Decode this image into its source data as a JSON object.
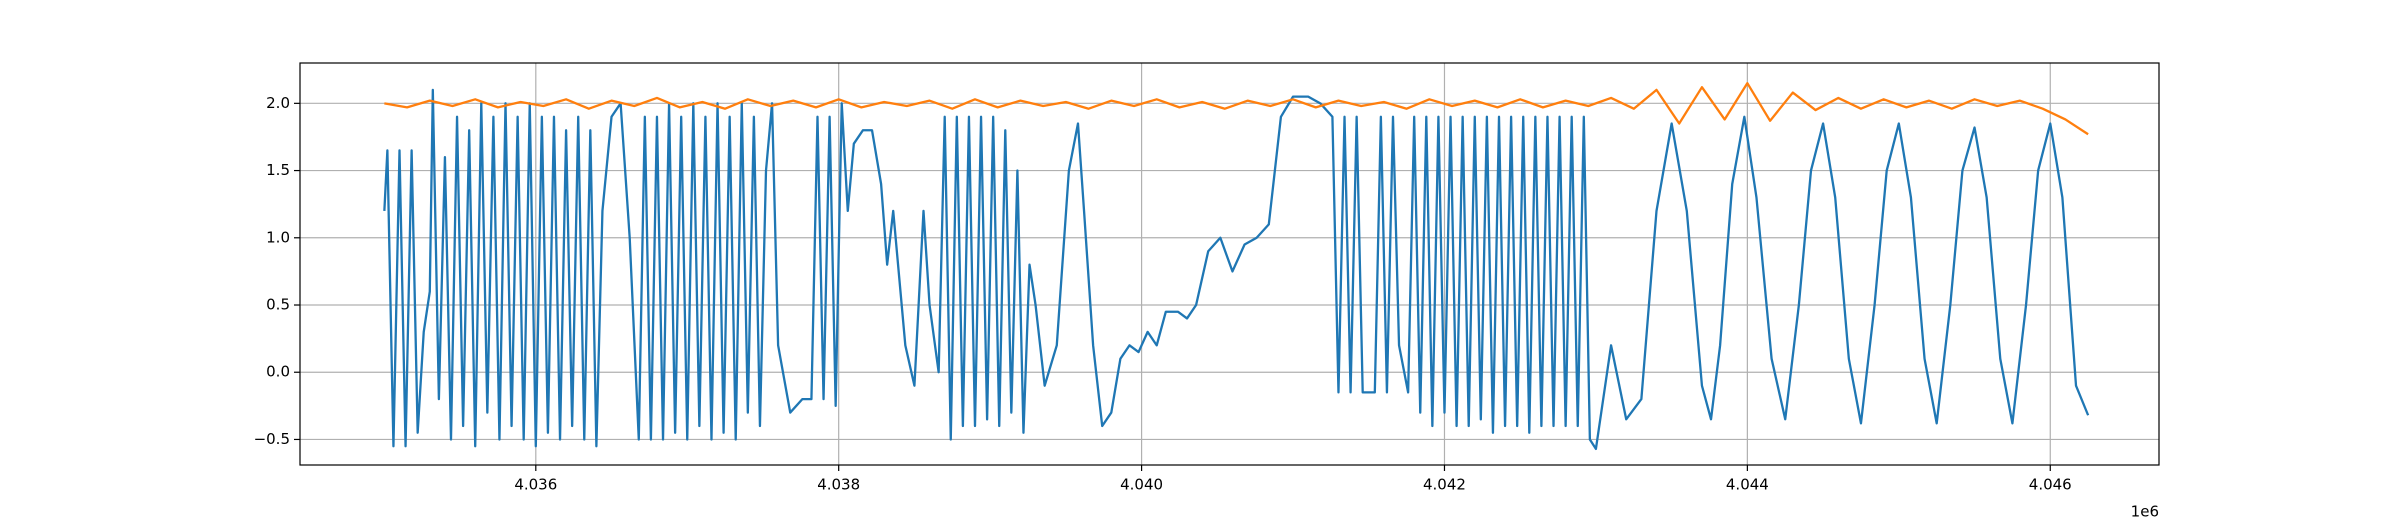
{
  "chart_data": {
    "type": "line",
    "xlim": [
      4034443,
      4046718
    ],
    "ylim": [
      -0.69,
      2.3
    ],
    "xticks": [
      {
        "value": 4036000,
        "label": "4.036"
      },
      {
        "value": 4038000,
        "label": "4.038"
      },
      {
        "value": 4040000,
        "label": "4.040"
      },
      {
        "value": 4042000,
        "label": "4.042"
      },
      {
        "value": 4044000,
        "label": "4.044"
      },
      {
        "value": 4046000,
        "label": "4.046"
      }
    ],
    "x_offset_label": "1e6",
    "yticks": [
      {
        "value": -0.5,
        "label": "−0.5"
      },
      {
        "value": 0,
        "label": "0.0"
      },
      0.5,
      {
        "value": 1,
        "label": "1.0"
      },
      1.5,
      {
        "value": 2,
        "label": "2.0"
      }
    ],
    "grid": true,
    "series": [
      {
        "color": "#1f77b4",
        "x": [
          4035000,
          4035020,
          4035060,
          4035100,
          4035140,
          4035180,
          4035220,
          4035260,
          4035300,
          4035320,
          4035360,
          4035400,
          4035440,
          4035480,
          4035520,
          4035560,
          4035600,
          4035640,
          4035680,
          4035720,
          4035760,
          4035800,
          4035840,
          4035880,
          4035920,
          4035960,
          4036000,
          4036040,
          4036080,
          4036120,
          4036160,
          4036200,
          4036240,
          4036280,
          4036320,
          4036360,
          4036400,
          4036440,
          4036500,
          4036560,
          4036620,
          4036680,
          4036720,
          4036760,
          4036800,
          4036840,
          4036880,
          4036920,
          4036960,
          4037000,
          4037040,
          4037080,
          4037120,
          4037160,
          4037200,
          4037240,
          4037280,
          4037320,
          4037360,
          4037400,
          4037440,
          4037480,
          4037520,
          4037560,
          4037600,
          4037680,
          4037760,
          4037820,
          4037860,
          4037900,
          4037940,
          4037980,
          4038020,
          4038060,
          4038100,
          4038160,
          4038220,
          4038280,
          4038320,
          4038360,
          4038400,
          4038440,
          4038500,
          4038560,
          4038600,
          4038660,
          4038700,
          4038740,
          4038780,
          4038820,
          4038860,
          4038900,
          4038940,
          4038980,
          4039020,
          4039060,
          4039100,
          4039140,
          4039180,
          4039220,
          4039260,
          4039300,
          4039360,
          4039440,
          4039520,
          4039580,
          4039620,
          4039680,
          4039740,
          4039800,
          4039860,
          4039920,
          4039980,
          4040040,
          4040100,
          4040160,
          4040240,
          4040300,
          4040360,
          4040440,
          4040520,
          4040600,
          4040680,
          4040760,
          4040840,
          4040920,
          4041000,
          4041100,
          4041180,
          4041260,
          4041300,
          4041340,
          4041380,
          4041420,
          4041460,
          4041540,
          4041580,
          4041620,
          4041660,
          4041700,
          4041760,
          4041800,
          4041840,
          4041880,
          4041920,
          4041960,
          4042000,
          4042040,
          4042080,
          4042120,
          4042160,
          4042200,
          4042240,
          4042280,
          4042320,
          4042360,
          4042400,
          4042440,
          4042480,
          4042520,
          4042560,
          4042600,
          4042640,
          4042680,
          4042720,
          4042760,
          4042800,
          4042840,
          4042880,
          4042920,
          4042960,
          4043000,
          4043100,
          4043200,
          4043300,
          4043400,
          4043500,
          4043600,
          4043700,
          4043760,
          4043820,
          4043900,
          4043980,
          4044060,
          4044160,
          4044250,
          4044340,
          4044420,
          4044500,
          4044580,
          4044670,
          4044750,
          4044840,
          4044920,
          4045000,
          4045080,
          4045170,
          4045250,
          4045340,
          4045420,
          4045500,
          4045580,
          4045670,
          4045750,
          4045840,
          4045920,
          4046000,
          4046080,
          4046170,
          4046250
        ],
        "values": [
          1.2,
          1.65,
          -0.55,
          1.65,
          -0.55,
          1.65,
          -0.45,
          0.3,
          0.6,
          2.1,
          -0.2,
          1.6,
          -0.5,
          1.9,
          -0.4,
          1.8,
          -0.55,
          2.0,
          -0.3,
          1.9,
          -0.5,
          2.0,
          -0.4,
          1.9,
          -0.5,
          2.0,
          -0.55,
          1.9,
          -0.45,
          1.9,
          -0.5,
          1.8,
          -0.4,
          1.9,
          -0.5,
          1.8,
          -0.55,
          1.2,
          1.9,
          2.0,
          1.0,
          -0.5,
          1.9,
          -0.5,
          1.9,
          -0.5,
          2.0,
          -0.45,
          1.9,
          -0.5,
          2.0,
          -0.4,
          1.9,
          -0.5,
          2.0,
          -0.45,
          1.9,
          -0.5,
          2.0,
          -0.3,
          1.9,
          -0.4,
          1.5,
          2.0,
          0.2,
          -0.3,
          -0.2,
          -0.2,
          1.9,
          -0.2,
          1.9,
          -0.25,
          2.0,
          1.2,
          1.7,
          1.8,
          1.8,
          1.4,
          0.8,
          1.2,
          0.7,
          0.2,
          -0.1,
          1.2,
          0.5,
          0.0,
          1.9,
          -0.5,
          1.9,
          -0.4,
          1.9,
          -0.4,
          1.9,
          -0.35,
          1.9,
          -0.4,
          1.8,
          -0.3,
          1.5,
          -0.45,
          0.8,
          0.5,
          -0.1,
          0.2,
          1.5,
          1.85,
          1.2,
          0.2,
          -0.4,
          -0.3,
          0.1,
          0.2,
          0.15,
          0.3,
          0.2,
          0.45,
          0.45,
          0.4,
          0.5,
          0.9,
          1.0,
          0.75,
          0.95,
          1.0,
          1.1,
          1.9,
          2.05,
          2.05,
          2.0,
          1.9,
          -0.15,
          1.9,
          -0.15,
          1.9,
          -0.15,
          -0.15,
          1.9,
          -0.15,
          1.9,
          0.2,
          -0.15,
          1.9,
          -0.3,
          1.9,
          -0.4,
          1.9,
          -0.3,
          1.9,
          -0.4,
          1.9,
          -0.4,
          1.9,
          -0.35,
          1.9,
          -0.45,
          1.9,
          -0.4,
          1.9,
          -0.4,
          1.9,
          -0.45,
          1.9,
          -0.4,
          1.9,
          -0.4,
          1.9,
          -0.4,
          1.9,
          -0.4,
          1.9,
          -0.5,
          -0.57,
          0.2,
          -0.35,
          -0.2,
          1.2,
          1.85,
          1.2,
          -0.1,
          -0.35,
          0.2,
          1.4,
          1.9,
          1.3,
          0.1,
          -0.35,
          0.5,
          1.5,
          1.85,
          1.3,
          0.1,
          -0.38,
          0.5,
          1.5,
          1.85,
          1.3,
          0.1,
          -0.38,
          0.5,
          1.5,
          1.82,
          1.3,
          0.1,
          -0.38,
          0.5,
          1.5,
          1.85,
          1.3,
          -0.1,
          -0.32
        ]
      },
      {
        "color": "#ff7f0e",
        "x": [
          4035000,
          4035150,
          4035300,
          4035450,
          4035600,
          4035750,
          4035900,
          4036050,
          4036200,
          4036350,
          4036500,
          4036650,
          4036800,
          4036950,
          4037100,
          4037250,
          4037400,
          4037550,
          4037700,
          4037850,
          4038000,
          4038150,
          4038300,
          4038450,
          4038600,
          4038750,
          4038900,
          4039050,
          4039200,
          4039350,
          4039500,
          4039650,
          4039800,
          4039950,
          4040100,
          4040250,
          4040400,
          4040550,
          4040700,
          4040850,
          4041000,
          4041150,
          4041300,
          4041450,
          4041600,
          4041750,
          4041900,
          4042050,
          4042200,
          4042350,
          4042500,
          4042650,
          4042800,
          4042950,
          4043100,
          4043250,
          4043400,
          4043550,
          4043700,
          4043850,
          4044000,
          4044150,
          4044300,
          4044450,
          4044600,
          4044750,
          4044900,
          4045050,
          4045200,
          4045350,
          4045500,
          4045650,
          4045800,
          4045950,
          4046100,
          4046250
        ],
        "values": [
          2.0,
          1.97,
          2.02,
          1.98,
          2.03,
          1.97,
          2.01,
          1.98,
          2.03,
          1.96,
          2.02,
          1.98,
          2.04,
          1.97,
          2.01,
          1.96,
          2.03,
          1.98,
          2.02,
          1.97,
          2.03,
          1.97,
          2.01,
          1.98,
          2.02,
          1.96,
          2.03,
          1.97,
          2.02,
          1.98,
          2.01,
          1.96,
          2.02,
          1.98,
          2.03,
          1.97,
          2.01,
          1.96,
          2.02,
          1.98,
          2.03,
          1.97,
          2.02,
          1.98,
          2.01,
          1.96,
          2.03,
          1.98,
          2.02,
          1.97,
          2.03,
          1.97,
          2.02,
          1.98,
          2.04,
          1.96,
          2.1,
          1.85,
          2.12,
          1.88,
          2.15,
          1.87,
          2.08,
          1.95,
          2.04,
          1.96,
          2.03,
          1.97,
          2.02,
          1.96,
          2.03,
          1.98,
          2.02,
          1.96,
          1.88,
          1.77
        ]
      }
    ]
  }
}
